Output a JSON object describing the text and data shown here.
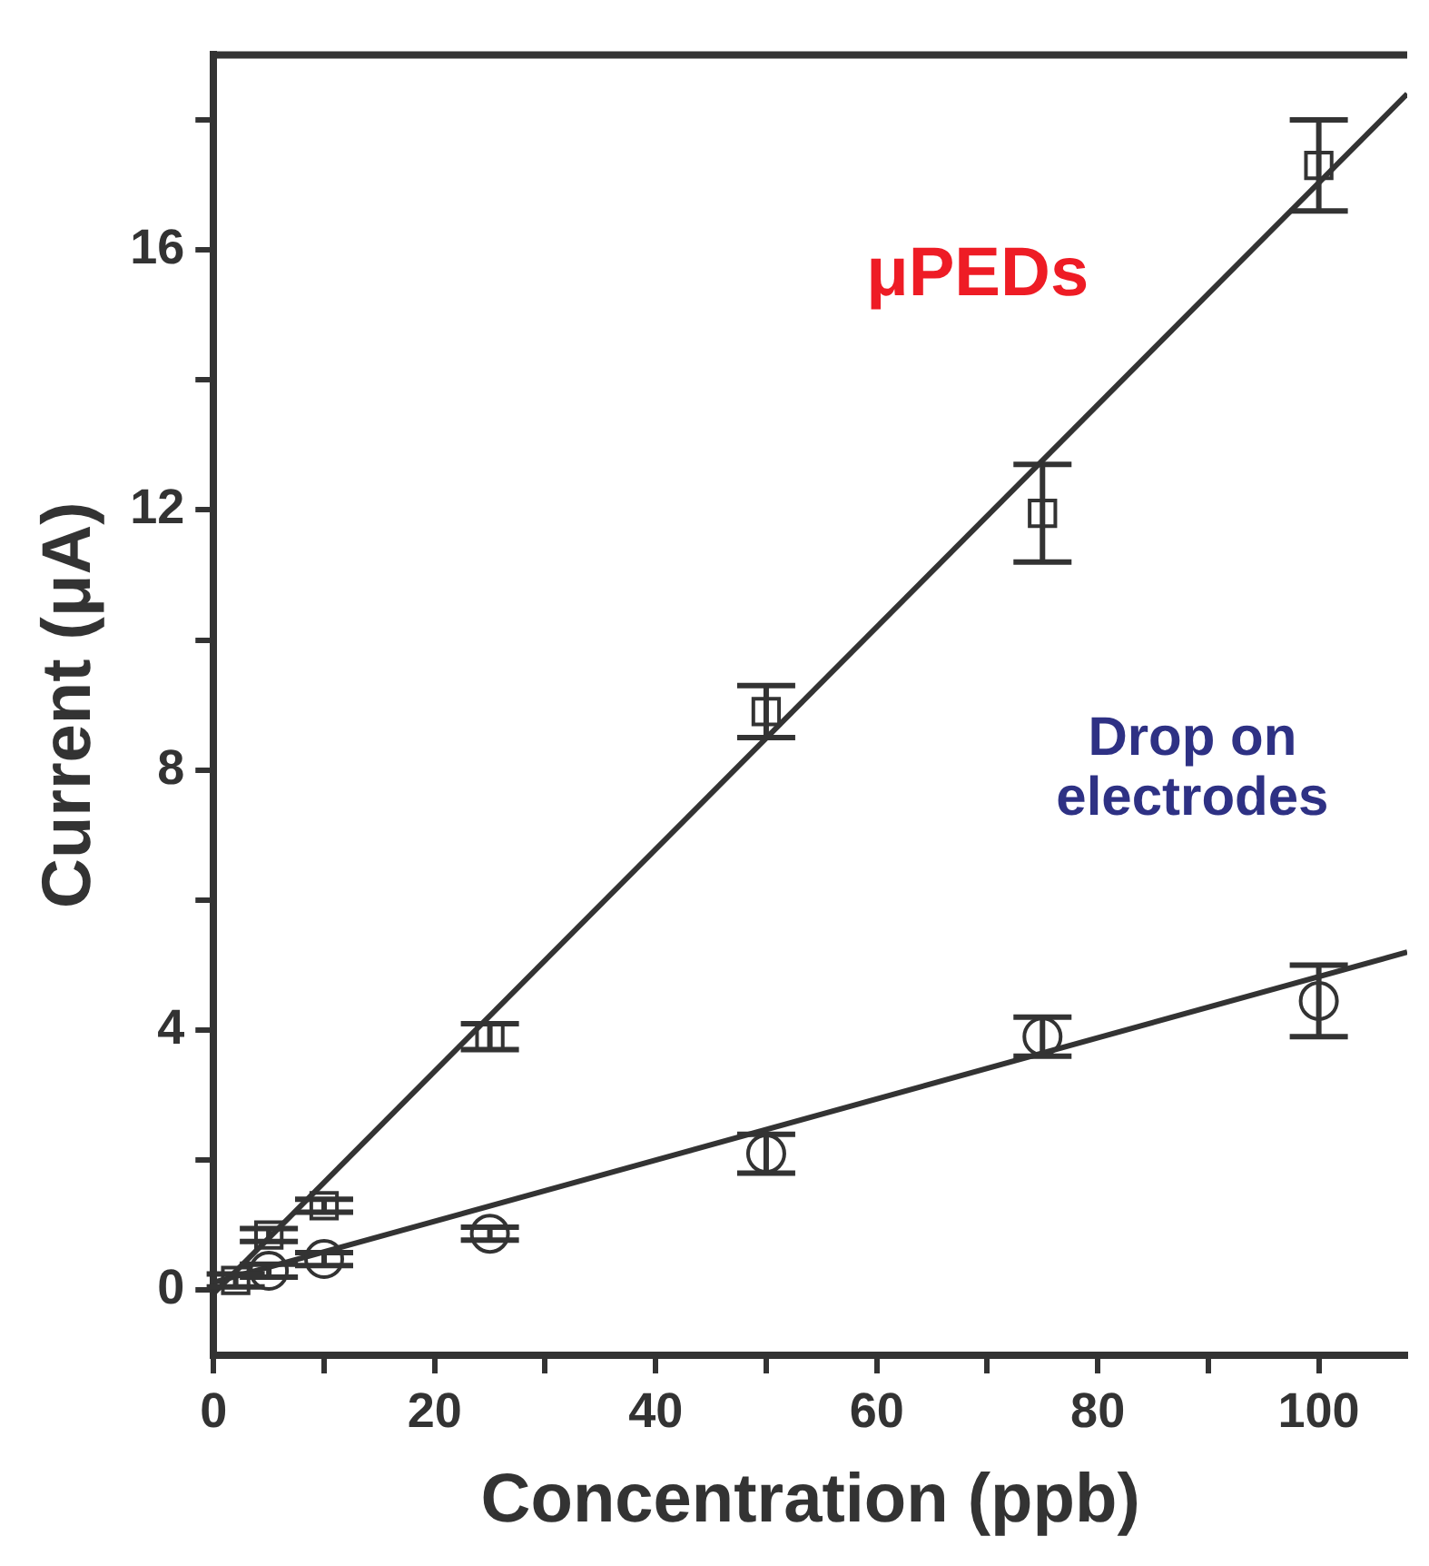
{
  "chart_data": {
    "type": "scatter",
    "xlabel": "Concentration (ppb)",
    "ylabel": "Current (μA)",
    "xlim": [
      0,
      108
    ],
    "ylim": [
      -1,
      19
    ],
    "xticks": [
      0,
      {
        "value": 10,
        "label": null
      },
      20,
      {
        "value": 30,
        "label": null
      },
      40,
      {
        "value": 50,
        "label": null
      },
      60,
      {
        "value": 70,
        "label": null
      },
      80,
      {
        "value": 90,
        "label": null
      },
      100
    ],
    "yticks": [
      0,
      {
        "value": 2,
        "label": null
      },
      4,
      {
        "value": 6,
        "label": null
      },
      8,
      {
        "value": 10,
        "label": null
      },
      12,
      {
        "value": 14,
        "label": null
      },
      16,
      {
        "value": 18,
        "label": null
      }
    ],
    "grid": false,
    "legend": false,
    "series": [
      {
        "type": "scatter",
        "marker": "square",
        "color": "#333333",
        "x": [
          2,
          5,
          10,
          25,
          50,
          75,
          100
        ],
        "values": [
          0.15,
          0.85,
          1.3,
          3.9,
          8.9,
          11.95,
          17.3
        ],
        "errors": [
          0.1,
          0.1,
          0.1,
          0.2,
          0.4,
          0.75,
          0.7
        ]
      },
      {
        "type": "scatter",
        "marker": "circle",
        "color": "#333333",
        "x": [
          5,
          10,
          25,
          50,
          75,
          100
        ],
        "values": [
          0.3,
          0.48,
          0.87,
          2.1,
          3.9,
          4.45
        ],
        "errors": [
          0.1,
          0.1,
          0.1,
          0.3,
          0.3,
          0.55
        ]
      },
      {
        "type": "line",
        "color": "#333333",
        "x": [
          0,
          108
        ],
        "values": [
          -0.05,
          18.4
        ]
      },
      {
        "type": "line",
        "color": "#333333",
        "x": [
          0,
          108
        ],
        "values": [
          0.12,
          5.2
        ]
      }
    ],
    "annotations": [
      "μPEDs",
      "Drop on electrodes"
    ]
  }
}
